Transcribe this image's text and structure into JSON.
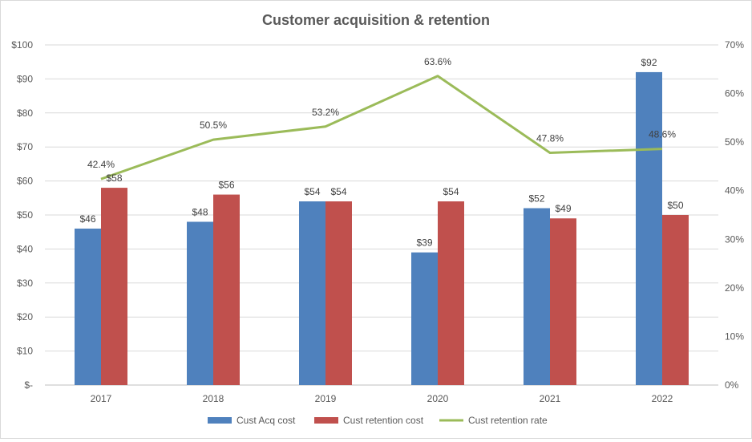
{
  "chart_data": {
    "type": "bar",
    "title": "Customer acquisition & retention",
    "categories": [
      "2017",
      "2018",
      "2019",
      "2020",
      "2021",
      "2022"
    ],
    "series": [
      {
        "name": "Cust Acq cost",
        "type": "bar",
        "axis": "left",
        "color": "#4f81bd",
        "values": [
          46,
          48,
          54,
          39,
          52,
          92
        ],
        "labels": [
          "$46",
          "$48",
          "$54",
          "$39",
          "$52",
          "$92"
        ]
      },
      {
        "name": "Cust retention cost",
        "type": "bar",
        "axis": "left",
        "color": "#c0504d",
        "values": [
          58,
          56,
          54,
          54,
          49,
          50
        ],
        "labels": [
          "$58",
          "$56",
          "$54",
          "$54",
          "$49",
          "$50"
        ]
      },
      {
        "name": "Cust retention rate",
        "type": "line",
        "axis": "right",
        "color": "#9bbb59",
        "values": [
          0.424,
          0.505,
          0.532,
          0.636,
          0.478,
          0.486
        ],
        "labels": [
          "42.4%",
          "50.5%",
          "53.2%",
          "63.6%",
          "47.8%",
          "48.6%"
        ]
      }
    ],
    "y_left": {
      "ylim": [
        0,
        100
      ],
      "ticks": [
        0,
        10,
        20,
        30,
        40,
        50,
        60,
        70,
        80,
        90,
        100
      ],
      "tick_labels": [
        "$-",
        "$10",
        "$20",
        "$30",
        "$40",
        "$50",
        "$60",
        "$70",
        "$80",
        "$90",
        "$100"
      ]
    },
    "y_right": {
      "ylim": [
        0,
        0.7
      ],
      "ticks": [
        0,
        0.1,
        0.2,
        0.3,
        0.4,
        0.5,
        0.6,
        0.7
      ],
      "tick_labels": [
        "0%",
        "10%",
        "20%",
        "30%",
        "40%",
        "50%",
        "60%",
        "70%"
      ]
    },
    "grid": true,
    "legend_position": "bottom"
  }
}
